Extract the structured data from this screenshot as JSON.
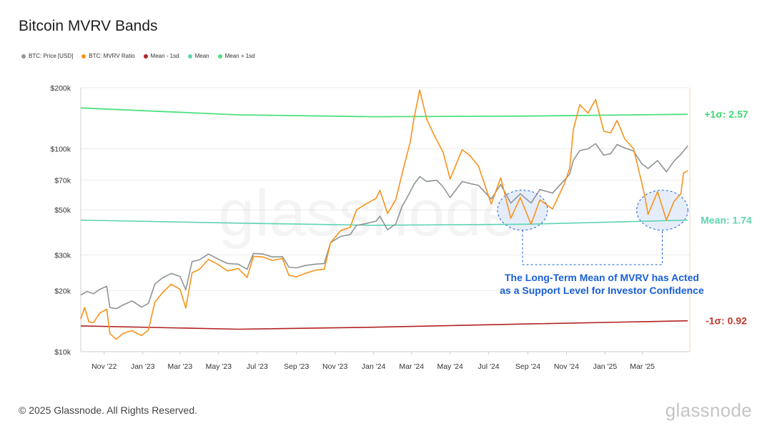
{
  "title": "Bitcoin MVRV Bands",
  "legend": [
    {
      "label": "BTC: Price [USD]",
      "color": "#8f9494"
    },
    {
      "label": "BTC: MVRV Ratio",
      "color": "#f7931a"
    },
    {
      "label": "Mean - 1sd",
      "color": "#b22222"
    },
    {
      "label": "Mean",
      "color": "#5fd3b3"
    },
    {
      "label": "Mean + 1sd",
      "color": "#4fe07f"
    }
  ],
  "chart_data": {
    "type": "line",
    "y_scale": "log",
    "ylim": [
      10000,
      200000
    ],
    "y_ticks": [
      {
        "value": 10000,
        "label": "$10k"
      },
      {
        "value": 20000,
        "label": "$20k"
      },
      {
        "value": 30000,
        "label": "$30k"
      },
      {
        "value": 50000,
        "label": "$50k"
      },
      {
        "value": 70000,
        "label": "$70k"
      },
      {
        "value": 100000,
        "label": "$100k"
      },
      {
        "value": 200000,
        "label": "$200k"
      }
    ],
    "x_range": [
      "2022-09-25",
      "2025-05-15"
    ],
    "x_ticks": [
      {
        "date": "2022-11-01",
        "label": "Nov '22"
      },
      {
        "date": "2023-01-01",
        "label": "Jan '23"
      },
      {
        "date": "2023-03-01",
        "label": "Mar '23"
      },
      {
        "date": "2023-05-01",
        "label": "May '23"
      },
      {
        "date": "2023-07-01",
        "label": "Jul '23"
      },
      {
        "date": "2023-09-01",
        "label": "Sep '23"
      },
      {
        "date": "2023-11-01",
        "label": "Nov '23"
      },
      {
        "date": "2024-01-01",
        "label": "Jan '24"
      },
      {
        "date": "2024-03-01",
        "label": "Mar '24"
      },
      {
        "date": "2024-05-01",
        "label": "May '24"
      },
      {
        "date": "2024-07-01",
        "label": "Jul '24"
      },
      {
        "date": "2024-09-01",
        "label": "Sep '24"
      },
      {
        "date": "2024-11-01",
        "label": "Nov '24"
      },
      {
        "date": "2025-01-01",
        "label": "Jan '25"
      },
      {
        "date": "2025-03-01",
        "label": "Mar '25"
      }
    ],
    "series": [
      {
        "name": "BTC: Price [USD]",
        "color": "#8f9494",
        "points": [
          [
            "2022-09-25",
            19000
          ],
          [
            "2022-10-05",
            19800
          ],
          [
            "2022-10-15",
            19300
          ],
          [
            "2022-10-25",
            20300
          ],
          [
            "2022-11-05",
            21000
          ],
          [
            "2022-11-10",
            16500
          ],
          [
            "2022-11-20",
            16300
          ],
          [
            "2022-12-01",
            17000
          ],
          [
            "2022-12-15",
            17800
          ],
          [
            "2022-12-30",
            16600
          ],
          [
            "2023-01-10",
            17300
          ],
          [
            "2023-01-20",
            21500
          ],
          [
            "2023-02-01",
            23100
          ],
          [
            "2023-02-15",
            24300
          ],
          [
            "2023-03-01",
            23500
          ],
          [
            "2023-03-10",
            20200
          ],
          [
            "2023-03-20",
            27800
          ],
          [
            "2023-04-01",
            28400
          ],
          [
            "2023-04-15",
            30300
          ],
          [
            "2023-05-01",
            28500
          ],
          [
            "2023-05-15",
            27200
          ],
          [
            "2023-06-01",
            27000
          ],
          [
            "2023-06-15",
            25500
          ],
          [
            "2023-06-25",
            30500
          ],
          [
            "2023-07-10",
            30300
          ],
          [
            "2023-07-25",
            29300
          ],
          [
            "2023-08-10",
            29400
          ],
          [
            "2023-08-20",
            26100
          ],
          [
            "2023-09-01",
            25900
          ],
          [
            "2023-09-15",
            26600
          ],
          [
            "2023-10-01",
            27000
          ],
          [
            "2023-10-15",
            27200
          ],
          [
            "2023-10-25",
            34500
          ],
          [
            "2023-11-10",
            37000
          ],
          [
            "2023-11-25",
            37800
          ],
          [
            "2023-12-05",
            41900
          ],
          [
            "2023-12-20",
            42800
          ],
          [
            "2024-01-05",
            44000
          ],
          [
            "2024-01-11",
            46500
          ],
          [
            "2024-01-23",
            39900
          ],
          [
            "2024-02-05",
            42600
          ],
          [
            "2024-02-15",
            51900
          ],
          [
            "2024-02-28",
            61500
          ],
          [
            "2024-03-05",
            67000
          ],
          [
            "2024-03-14",
            73000
          ],
          [
            "2024-03-25",
            69000
          ],
          [
            "2024-04-10",
            70000
          ],
          [
            "2024-04-20",
            64900
          ],
          [
            "2024-05-01",
            57500
          ],
          [
            "2024-05-20",
            69000
          ],
          [
            "2024-06-01",
            67500
          ],
          [
            "2024-06-15",
            66000
          ],
          [
            "2024-07-05",
            56600
          ],
          [
            "2024-07-20",
            66700
          ],
          [
            "2024-08-05",
            54000
          ],
          [
            "2024-08-20",
            60000
          ],
          [
            "2024-09-06",
            54000
          ],
          [
            "2024-09-20",
            63000
          ],
          [
            "2024-10-10",
            60500
          ],
          [
            "2024-10-28",
            69700
          ],
          [
            "2024-11-06",
            75000
          ],
          [
            "2024-11-12",
            88000
          ],
          [
            "2024-11-22",
            98000
          ],
          [
            "2024-12-05",
            100000
          ],
          [
            "2024-12-17",
            106000
          ],
          [
            "2024-12-30",
            93000
          ],
          [
            "2025-01-10",
            94700
          ],
          [
            "2025-01-20",
            105000
          ],
          [
            "2025-02-01",
            101000
          ],
          [
            "2025-02-15",
            97500
          ],
          [
            "2025-02-28",
            84500
          ],
          [
            "2025-03-10",
            80000
          ],
          [
            "2025-03-25",
            87500
          ],
          [
            "2025-04-08",
            77000
          ],
          [
            "2025-04-20",
            87000
          ],
          [
            "2025-05-01",
            94000
          ],
          [
            "2025-05-12",
            103500
          ]
        ]
      },
      {
        "name": "BTC: MVRV Ratio",
        "color": "#f7931a",
        "points": [
          [
            "2022-09-25",
            14500
          ],
          [
            "2022-10-01",
            16500
          ],
          [
            "2022-10-08",
            14000
          ],
          [
            "2022-10-15",
            13900
          ],
          [
            "2022-10-25",
            15500
          ],
          [
            "2022-11-05",
            16200
          ],
          [
            "2022-11-10",
            12300
          ],
          [
            "2022-11-20",
            11500
          ],
          [
            "2022-12-01",
            12300
          ],
          [
            "2022-12-15",
            12700
          ],
          [
            "2022-12-30",
            12000
          ],
          [
            "2023-01-10",
            12800
          ],
          [
            "2023-01-20",
            17500
          ],
          [
            "2023-02-01",
            19500
          ],
          [
            "2023-02-15",
            21500
          ],
          [
            "2023-03-01",
            20300
          ],
          [
            "2023-03-10",
            16400
          ],
          [
            "2023-03-20",
            24500
          ],
          [
            "2023-04-01",
            25500
          ],
          [
            "2023-04-15",
            28500
          ],
          [
            "2023-05-01",
            26800
          ],
          [
            "2023-05-15",
            25000
          ],
          [
            "2023-06-01",
            25700
          ],
          [
            "2023-06-15",
            23200
          ],
          [
            "2023-06-25",
            29500
          ],
          [
            "2023-07-10",
            29300
          ],
          [
            "2023-07-25",
            28200
          ],
          [
            "2023-08-10",
            28800
          ],
          [
            "2023-08-20",
            23800
          ],
          [
            "2023-09-01",
            23400
          ],
          [
            "2023-09-15",
            24300
          ],
          [
            "2023-10-01",
            25200
          ],
          [
            "2023-10-15",
            25500
          ],
          [
            "2023-10-25",
            34500
          ],
          [
            "2023-11-10",
            39500
          ],
          [
            "2023-11-25",
            41000
          ],
          [
            "2023-12-05",
            50000
          ],
          [
            "2023-12-20",
            53500
          ],
          [
            "2024-01-05",
            57000
          ],
          [
            "2024-01-11",
            62500
          ],
          [
            "2024-01-23",
            48000
          ],
          [
            "2024-02-05",
            56000
          ],
          [
            "2024-02-15",
            75000
          ],
          [
            "2024-02-28",
            108000
          ],
          [
            "2024-03-05",
            142000
          ],
          [
            "2024-03-14",
            195000
          ],
          [
            "2024-03-25",
            140000
          ],
          [
            "2024-04-05",
            118000
          ],
          [
            "2024-04-20",
            96000
          ],
          [
            "2024-05-01",
            71000
          ],
          [
            "2024-05-20",
            99000
          ],
          [
            "2024-06-01",
            93000
          ],
          [
            "2024-06-15",
            82000
          ],
          [
            "2024-07-05",
            53500
          ],
          [
            "2024-07-20",
            72000
          ],
          [
            "2024-08-05",
            45500
          ],
          [
            "2024-08-20",
            57500
          ],
          [
            "2024-09-06",
            42500
          ],
          [
            "2024-09-20",
            56000
          ],
          [
            "2024-10-10",
            50500
          ],
          [
            "2024-10-28",
            66500
          ],
          [
            "2024-11-06",
            80000
          ],
          [
            "2024-11-12",
            125000
          ],
          [
            "2024-11-22",
            165000
          ],
          [
            "2024-12-05",
            150000
          ],
          [
            "2024-12-17",
            175000
          ],
          [
            "2024-12-30",
            122000
          ],
          [
            "2025-01-10",
            120000
          ],
          [
            "2025-01-20",
            138000
          ],
          [
            "2025-02-01",
            112000
          ],
          [
            "2025-02-15",
            100000
          ],
          [
            "2025-02-28",
            68000
          ],
          [
            "2025-03-05",
            58000
          ],
          [
            "2025-03-10",
            47500
          ],
          [
            "2025-03-25",
            61500
          ],
          [
            "2025-04-08",
            44500
          ],
          [
            "2025-04-20",
            55000
          ],
          [
            "2025-05-01",
            60000
          ],
          [
            "2025-05-05",
            76000
          ],
          [
            "2025-05-12",
            78000
          ]
        ]
      },
      {
        "name": "Mean - 1sd",
        "color": "#b22222",
        "points": [
          [
            "2022-09-25",
            13400
          ],
          [
            "2023-06-01",
            12900
          ],
          [
            "2024-01-01",
            13200
          ],
          [
            "2024-09-01",
            13700
          ],
          [
            "2025-05-12",
            14200
          ]
        ]
      },
      {
        "name": "Mean",
        "color": "#5fd3b3",
        "points": [
          [
            "2022-09-25",
            44500
          ],
          [
            "2023-06-01",
            43000
          ],
          [
            "2024-01-01",
            42000
          ],
          [
            "2024-09-01",
            42500
          ],
          [
            "2025-05-12",
            44500
          ]
        ]
      },
      {
        "name": "Mean + 1sd",
        "color": "#4fe07f",
        "points": [
          [
            "2022-09-25",
            159000
          ],
          [
            "2023-06-01",
            147000
          ],
          [
            "2024-01-01",
            144000
          ],
          [
            "2024-09-01",
            145000
          ],
          [
            "2025-05-12",
            148000
          ]
        ]
      }
    ],
    "band_labels": [
      {
        "text": "+1σ: 2.57",
        "color": "#3fd76f"
      },
      {
        "text": "Mean: 1.74",
        "color": "#5fd3b3"
      },
      {
        "text": "-1σ: 0.92",
        "color": "#c0392b"
      }
    ],
    "annotation": {
      "lines": [
        "The Long-Term Mean of MVRV has Acted",
        "as a Support Level for Investor Confidence"
      ],
      "color": "#1a5fd8",
      "highlight_ranges": [
        [
          "2024-07-15",
          "2024-10-02"
        ],
        [
          "2025-02-20",
          "2025-05-12"
        ]
      ]
    },
    "watermark": "glassnode"
  },
  "footer": {
    "copyright": "© 2025 Glassnode. All Rights Reserved.",
    "brand": "glassnode"
  }
}
